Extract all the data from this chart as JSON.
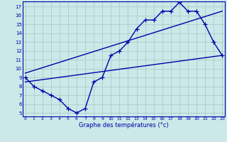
{
  "xlabel": "Graphe des températures (°c)",
  "ylabel_ticks": [
    5,
    6,
    7,
    8,
    9,
    10,
    11,
    12,
    13,
    14,
    15,
    16,
    17
  ],
  "xticks": [
    0,
    1,
    2,
    3,
    4,
    5,
    6,
    7,
    8,
    9,
    10,
    11,
    12,
    13,
    14,
    15,
    16,
    17,
    18,
    19,
    20,
    21,
    22,
    23
  ],
  "xlim": [
    -0.3,
    23.3
  ],
  "ylim": [
    4.6,
    17.6
  ],
  "bg_color": "#cce8e8",
  "line_color": "#0000aa",
  "grid_color": "#aacccc",
  "curve1_x": [
    0,
    1,
    2,
    3,
    4,
    5,
    6,
    7,
    8,
    9,
    10,
    11,
    12,
    13,
    14,
    15,
    16,
    17,
    18,
    19,
    20,
    21,
    22,
    23
  ],
  "curve1_y": [
    9.0,
    8.0,
    7.5,
    7.0,
    6.5,
    5.5,
    5.0,
    5.5,
    8.5,
    9.0,
    11.5,
    12.0,
    13.0,
    14.5,
    15.5,
    15.5,
    16.5,
    16.5,
    17.5,
    16.5,
    16.5,
    15.0,
    13.0,
    11.5
  ],
  "curve2_x": [
    0,
    23
  ],
  "curve2_y": [
    8.5,
    11.5
  ],
  "curve3_x": [
    0,
    23
  ],
  "curve3_y": [
    9.5,
    16.5
  ],
  "marker": "+",
  "markersize": 4,
  "linewidth": 1.0
}
